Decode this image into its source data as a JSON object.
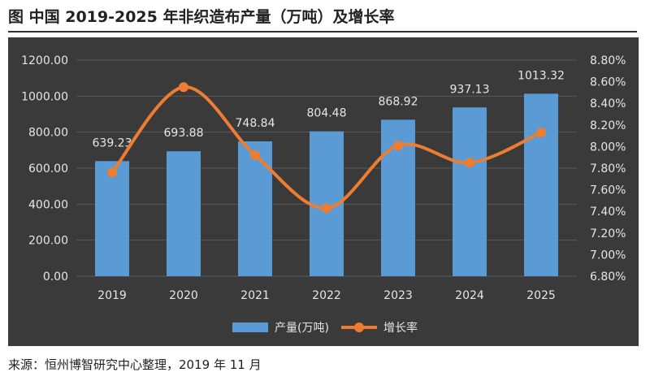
{
  "title": "图  中国 2019-2025 年非织造布产量（万吨）及增长率",
  "source": "来源：恒州博智研究中心整理，2019 年 11 月",
  "chart_data": {
    "type": "bar",
    "categories": [
      "2019",
      "2020",
      "2021",
      "2022",
      "2023",
      "2024",
      "2025"
    ],
    "series": [
      {
        "name": "产量(万吨)",
        "type": "bar",
        "axis": "left",
        "values": [
          639.23,
          693.88,
          748.84,
          804.48,
          868.92,
          937.13,
          1013.32
        ],
        "value_labels": [
          "639.23",
          "693.88",
          "748.84",
          "804.48",
          "868.92",
          "937.13",
          "1013.32"
        ]
      },
      {
        "name": "增长率",
        "type": "line",
        "axis": "right",
        "values": [
          7.76,
          8.55,
          7.92,
          7.43,
          8.01,
          7.85,
          8.13
        ]
      }
    ],
    "y_left": {
      "min": 0,
      "max": 1200,
      "ticks": [
        "0.00",
        "200.00",
        "400.00",
        "600.00",
        "800.00",
        "1000.00",
        "1200.00"
      ]
    },
    "y_right": {
      "min": 6.8,
      "max": 8.8,
      "ticks": [
        "6.80%",
        "7.00%",
        "7.20%",
        "7.40%",
        "7.60%",
        "7.80%",
        "8.00%",
        "8.20%",
        "8.40%",
        "8.60%",
        "8.80%"
      ]
    },
    "grid": true,
    "legend_position": "bottom",
    "colors": {
      "background": "#3a3a3a",
      "bar": "#5b9bd5",
      "line": "#ed7d31",
      "grid": "#5a5a5a",
      "tick_text": "#e6e6e6"
    }
  }
}
